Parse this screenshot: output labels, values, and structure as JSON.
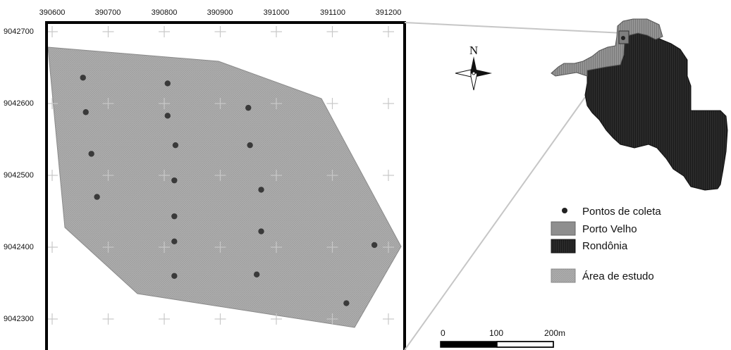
{
  "map": {
    "x_ticks": [
      "390600",
      "390700",
      "390800",
      "390900",
      "391000",
      "391100",
      "391200"
    ],
    "y_ticks": [
      "9042700",
      "9042600",
      "9042500",
      "9042400",
      "9042300"
    ],
    "north_label": "N",
    "legend": [
      {
        "id": "pontos",
        "label": "Pontos de coleta",
        "symbol": "point",
        "color": "#3a3a3a"
      },
      {
        "id": "porto",
        "label": "Porto Velho",
        "symbol": "patch",
        "color": "#8e8e8e"
      },
      {
        "id": "rondonia",
        "label": "Rondônia",
        "symbol": "patch",
        "color": "#262626"
      },
      {
        "id": "area",
        "label": "Área de estudo",
        "symbol": "patch",
        "color": "#aaaaaa"
      }
    ],
    "scale_bar": {
      "labels": [
        "0",
        "100",
        "200m"
      ]
    },
    "colors": {
      "study_area": "#a9a9a9",
      "points": "#3a3a3a",
      "rondonia": "#262626",
      "porto_velho": "#8e8e8e"
    },
    "sample_points": [
      {
        "x": 390655,
        "y": 9042636
      },
      {
        "x": 390660,
        "y": 9042588
      },
      {
        "x": 390670,
        "y": 9042530
      },
      {
        "x": 390680,
        "y": 9042470
      },
      {
        "x": 390806,
        "y": 9042628
      },
      {
        "x": 390806,
        "y": 9042583
      },
      {
        "x": 390820,
        "y": 9042542
      },
      {
        "x": 390818,
        "y": 9042493
      },
      {
        "x": 390818,
        "y": 9042443
      },
      {
        "x": 390818,
        "y": 9042408
      },
      {
        "x": 390818,
        "y": 9042360
      },
      {
        "x": 390950,
        "y": 9042594
      },
      {
        "x": 390953,
        "y": 9042542
      },
      {
        "x": 390973,
        "y": 9042480
      },
      {
        "x": 390973,
        "y": 9042422
      },
      {
        "x": 390965,
        "y": 9042362
      },
      {
        "x": 391125,
        "y": 9042322
      },
      {
        "x": 391175,
        "y": 9042403
      }
    ]
  }
}
